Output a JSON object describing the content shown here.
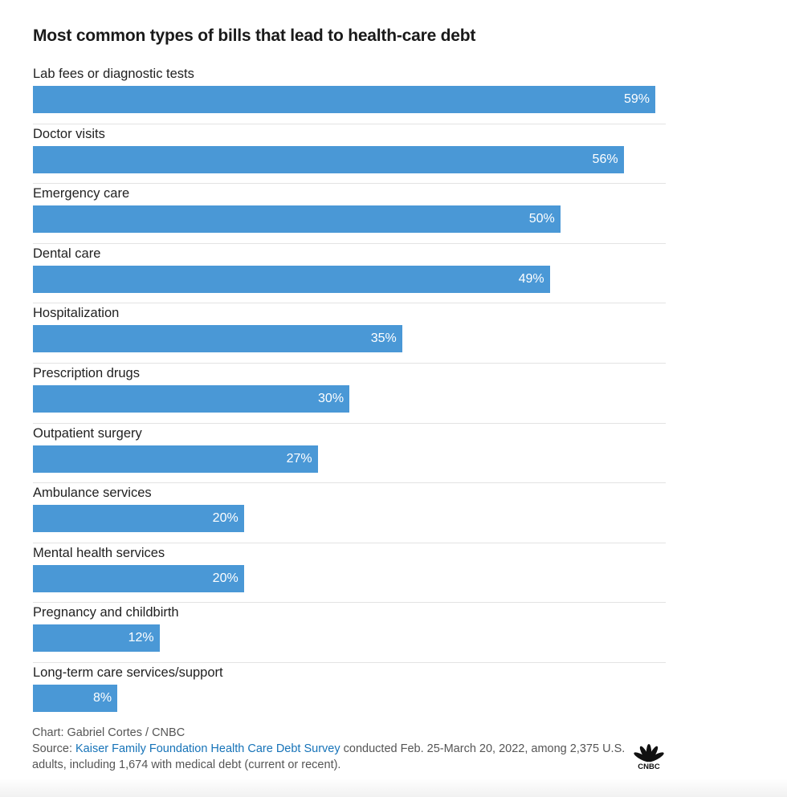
{
  "chart_data": {
    "type": "bar",
    "orientation": "horizontal",
    "title": "Most common types of bills that lead to health-care debt",
    "xlabel": "",
    "ylabel": "",
    "xlim": [
      0,
      60
    ],
    "unit": "%",
    "categories": [
      "Lab fees or diagnostic tests",
      "Doctor visits",
      "Emergency care",
      "Dental care",
      "Hospitalization",
      "Prescription drugs",
      "Outpatient surgery",
      "Ambulance services",
      "Mental health services",
      "Pregnancy and childbirth",
      "Long-term care services/support"
    ],
    "values": [
      59,
      56,
      50,
      49,
      35,
      30,
      27,
      20,
      20,
      12,
      8
    ],
    "value_labels": [
      "59%",
      "56%",
      "50%",
      "49%",
      "35%",
      "30%",
      "27%",
      "20%",
      "20%",
      "12%",
      "8%"
    ],
    "bar_color": "#4a98d6"
  },
  "footer": {
    "credit": "Chart: Gabriel Cortes / CNBC",
    "source_prefix": "Source: ",
    "source_link": "Kaiser Family Foundation Health Care Debt Survey",
    "source_suffix": " conducted Feb. 25-March 20, 2022, among 2,375 U.S. adults, including 1,674 with medical debt (current or recent)."
  },
  "logo": {
    "text": "CNBC",
    "icon": "peacock-icon"
  }
}
